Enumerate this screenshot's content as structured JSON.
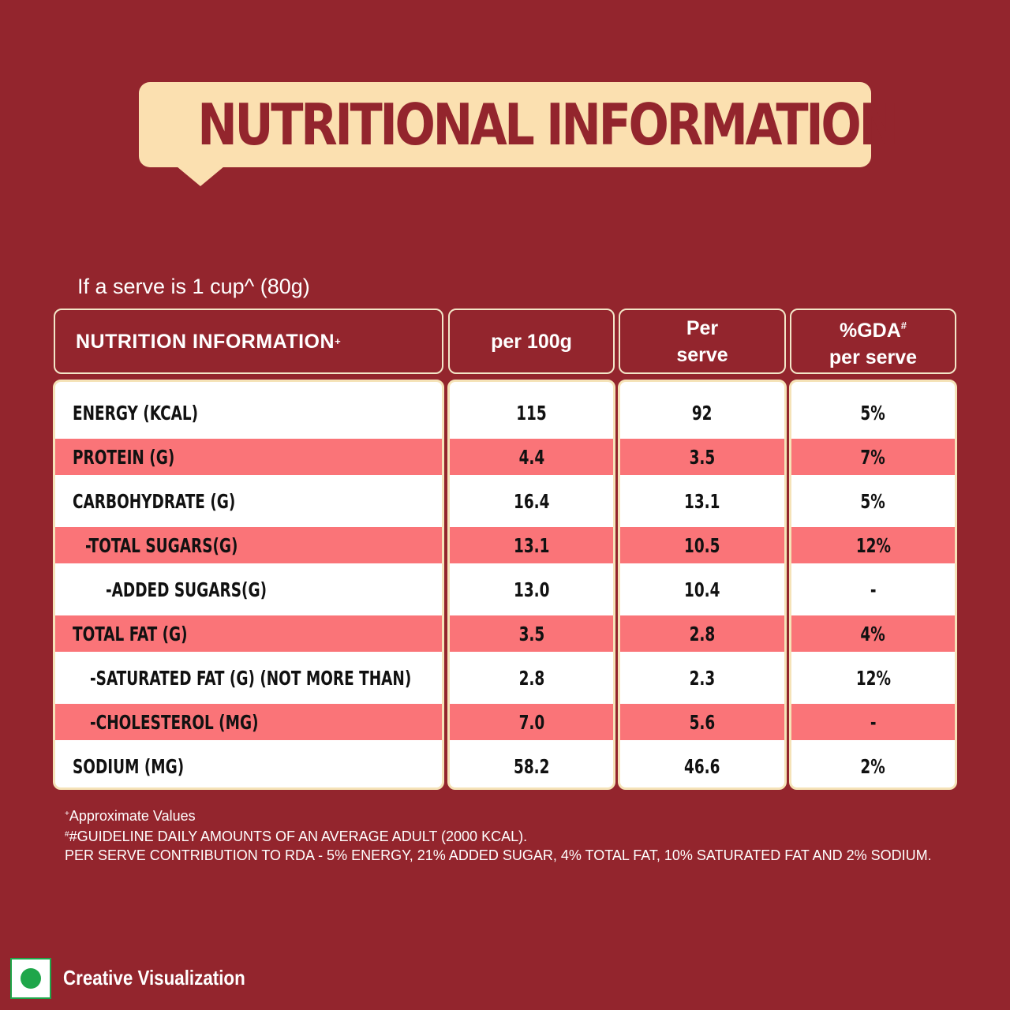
{
  "title": "NUTRITIONAL INFORMATION",
  "serve_note": "If a serve is 1 cup^ (80g)",
  "headers": {
    "col1": "NUTRITION INFORMATION",
    "col1_mark": "+",
    "col2": "per 100g",
    "col3_line1": "Per",
    "col3_line2": "serve",
    "col4_line1": "%GDA",
    "col4_mark": "#",
    "col4_line2": "per serve"
  },
  "rows": [
    {
      "label": "ENERGY (KCAL)",
      "per100": "115",
      "perserve": "92",
      "gda": "5%"
    },
    {
      "label": "PROTEIN (G)",
      "per100": "4.4",
      "perserve": "3.5",
      "gda": "7%"
    },
    {
      "label": "CARBOHYDRATE (G)",
      "per100": "16.4",
      "perserve": "13.1",
      "gda": "5%"
    },
    {
      "label": "-TOTAL SUGARS(G)",
      "per100": "13.1",
      "perserve": "10.5",
      "gda": "12%"
    },
    {
      "label": "-ADDED SUGARS(G)",
      "per100": "13.0",
      "perserve": "10.4",
      "gda": "-"
    },
    {
      "label": "TOTAL FAT (G)",
      "per100": "3.5",
      "perserve": "2.8",
      "gda": "4%"
    },
    {
      "label": "-SATURATED FAT (G) (NOT MORE THAN)",
      "per100": "2.8",
      "perserve": "2.3",
      "gda": "12%"
    },
    {
      "label": "-CHOLESTEROL (MG)",
      "per100": "7.0",
      "perserve": "5.6",
      "gda": "-"
    },
    {
      "label": "SODIUM (MG)",
      "per100": "58.2",
      "perserve": "46.6",
      "gda": "2%"
    }
  ],
  "footnotes": {
    "line1_mark": "+",
    "line1": "Approximate Values",
    "line2_mark": "#",
    "line2": "#GUIDELINE DAILY AMOUNTS OF AN AVERAGE ADULT (2000 KCAL).",
    "line3": "PER SERVE CONTRIBUTION TO RDA - 5% ENERGY, 21% ADDED SUGAR, 4% TOTAL FAT, 10% SATURATED FAT AND 2% SODIUM."
  },
  "bottom_label": "Creative Visualization",
  "colors": {
    "background": "#93252D",
    "banner": "#FBE0B0",
    "row_shade": "#FA7478",
    "veg_green": "#1FA64A"
  },
  "icons": {
    "veg_symbol": "veg-mark-icon"
  }
}
